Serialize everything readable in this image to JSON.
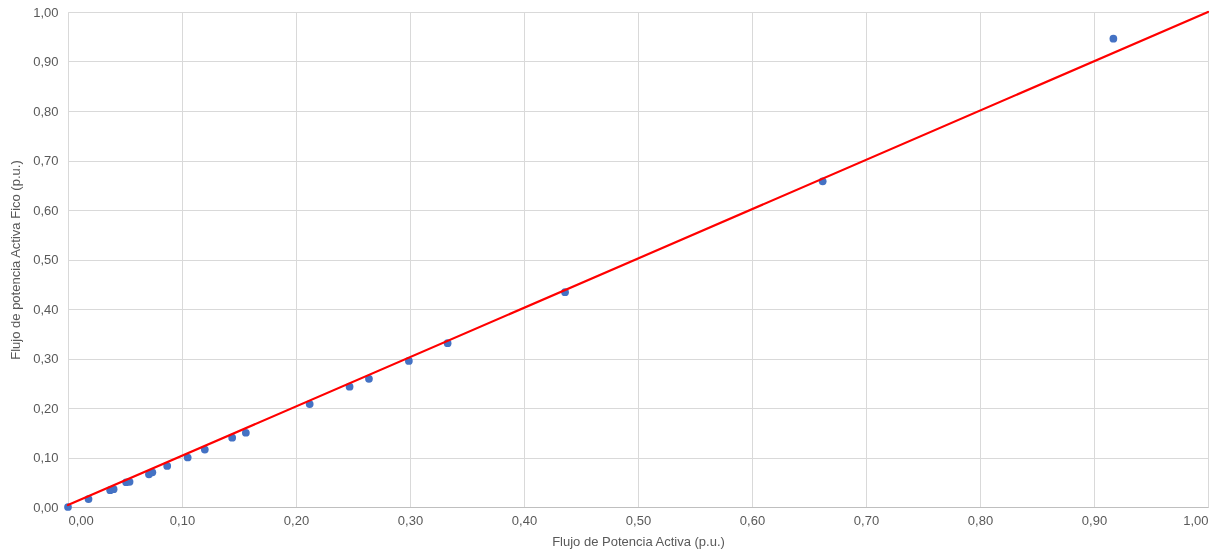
{
  "chart_data": {
    "type": "scatter",
    "xlabel": "Flujo de Potencia Activa (p.u.)",
    "ylabel": "Flujo de potencia Activa Fico (p.u.)",
    "x": [
      0,
      0.018,
      0.037,
      0.04,
      0.051,
      0.054,
      0.071,
      0.074,
      0.087,
      0.105,
      0.12,
      0.144,
      0.156,
      0.212,
      0.247,
      0.264,
      0.299,
      0.333,
      0.436,
      0.662,
      0.917
    ],
    "series": [
      {
        "color": "#4472c4",
        "marker": "circle",
        "values": [
          0,
          0.016,
          0.034,
          0.036,
          0.05,
          0.051,
          0.066,
          0.07,
          0.083,
          0.1,
          0.116,
          0.14,
          0.15,
          0.208,
          0.243,
          0.259,
          0.295,
          0.331,
          0.434,
          0.658,
          0.946
        ]
      },
      {
        "type": "line",
        "color": "#ff0000",
        "line_style": "solid",
        "x": [
          0,
          1
        ],
        "values": [
          0.004,
          1.0
        ]
      }
    ],
    "xlim": [
      0,
      1
    ],
    "ylim": [
      0,
      1
    ],
    "xticks": [
      {
        "value": 0,
        "label": "0,00"
      },
      {
        "value": 0.1,
        "label": "0,10"
      },
      {
        "value": 0.2,
        "label": "0,20"
      },
      {
        "value": 0.3,
        "label": "0,30"
      },
      {
        "value": 0.4,
        "label": "0,40"
      },
      {
        "value": 0.5,
        "label": "0,50"
      },
      {
        "value": 0.6,
        "label": "0,60"
      },
      {
        "value": 0.7,
        "label": "0,70"
      },
      {
        "value": 0.8,
        "label": "0,80"
      },
      {
        "value": 0.9,
        "label": "0,90"
      },
      {
        "value": 1,
        "label": "1,00"
      }
    ],
    "yticks": [
      {
        "value": 0,
        "label": "0,00"
      },
      {
        "value": 0.1,
        "label": "0,10"
      },
      {
        "value": 0.2,
        "label": "0,20"
      },
      {
        "value": 0.3,
        "label": "0,30"
      },
      {
        "value": 0.4,
        "label": "0,40"
      },
      {
        "value": 0.5,
        "label": "0,50"
      },
      {
        "value": 0.6,
        "label": "0,60"
      },
      {
        "value": 0.7,
        "label": "0,70"
      },
      {
        "value": 0.8,
        "label": "0,80"
      },
      {
        "value": 0.9,
        "label": "0,90"
      },
      {
        "value": 1,
        "label": "1,00"
      }
    ],
    "grid": true
  }
}
